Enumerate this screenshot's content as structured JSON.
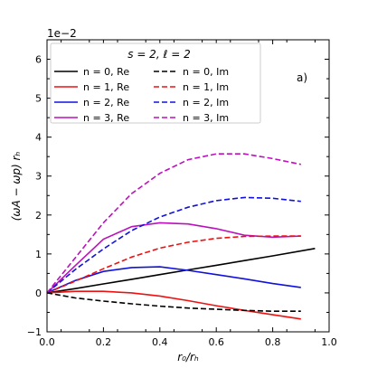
{
  "chart_data": {
    "type": "line",
    "title": "",
    "xlabel": "r₀/rₕ",
    "ylabel": "(ωA − ωp) rₕ",
    "scale_note": "1e−2",
    "annotation": "a)",
    "xlim": [
      0.0,
      1.0
    ],
    "ylim": [
      -1.0,
      6.5
    ],
    "xticks": [
      "0.0",
      "0.2",
      "0.4",
      "0.6",
      "0.8",
      "1.0"
    ],
    "yticks": [
      "−1",
      "0",
      "1",
      "2",
      "3",
      "4",
      "5",
      "6"
    ],
    "legend": {
      "title": "s = 2, ℓ = 2",
      "placement": "top-left"
    },
    "series": [
      {
        "name": "n = 0, Re",
        "color": "#000000",
        "dash": "solid",
        "x": [
          0.0,
          0.1,
          0.2,
          0.3,
          0.4,
          0.5,
          0.6,
          0.7,
          0.8,
          0.95
        ],
        "y": [
          0.0,
          0.11,
          0.23,
          0.35,
          0.47,
          0.59,
          0.71,
          0.83,
          0.95,
          1.14
        ]
      },
      {
        "name": "n = 1, Re",
        "color": "#ee1111",
        "dash": "solid",
        "x": [
          0.0,
          0.1,
          0.2,
          0.3,
          0.4,
          0.5,
          0.6,
          0.7,
          0.8,
          0.9
        ],
        "y": [
          0.0,
          0.04,
          0.04,
          0.0,
          -0.08,
          -0.2,
          -0.33,
          -0.45,
          -0.56,
          -0.67
        ]
      },
      {
        "name": "n = 2, Re",
        "color": "#1111dd",
        "dash": "solid",
        "x": [
          0.0,
          0.1,
          0.2,
          0.3,
          0.4,
          0.5,
          0.6,
          0.7,
          0.8,
          0.9
        ],
        "y": [
          0.0,
          0.32,
          0.55,
          0.65,
          0.67,
          0.58,
          0.47,
          0.36,
          0.24,
          0.14
        ]
      },
      {
        "name": "n = 3, Re",
        "color": "#bb11bb",
        "dash": "solid",
        "x": [
          0.0,
          0.1,
          0.2,
          0.3,
          0.4,
          0.5,
          0.6,
          0.7,
          0.8,
          0.9
        ],
        "y": [
          0.0,
          0.7,
          1.38,
          1.7,
          1.8,
          1.77,
          1.65,
          1.48,
          1.43,
          1.46
        ]
      },
      {
        "name": "n = 0, Im",
        "color": "#000000",
        "dash": "dashed",
        "x": [
          0.0,
          0.1,
          0.2,
          0.3,
          0.4,
          0.5,
          0.6,
          0.7,
          0.8,
          0.9
        ],
        "y": [
          0.0,
          -0.13,
          -0.21,
          -0.28,
          -0.34,
          -0.39,
          -0.42,
          -0.45,
          -0.47,
          -0.47
        ]
      },
      {
        "name": "n = 1, Im",
        "color": "#ee1111",
        "dash": "dashed",
        "x": [
          0.0,
          0.1,
          0.2,
          0.3,
          0.4,
          0.5,
          0.6,
          0.7,
          0.8,
          0.9
        ],
        "y": [
          0.0,
          0.3,
          0.62,
          0.92,
          1.15,
          1.3,
          1.4,
          1.45,
          1.46,
          1.46
        ]
      },
      {
        "name": "n = 2, Im",
        "color": "#1111dd",
        "dash": "dashed",
        "x": [
          0.0,
          0.1,
          0.2,
          0.3,
          0.4,
          0.5,
          0.6,
          0.7,
          0.8,
          0.9
        ],
        "y": [
          0.0,
          0.6,
          1.13,
          1.6,
          1.95,
          2.2,
          2.37,
          2.45,
          2.43,
          2.35
        ]
      },
      {
        "name": "n = 3, Im",
        "color": "#bb11bb",
        "dash": "dashed",
        "x": [
          0.0,
          0.1,
          0.2,
          0.3,
          0.4,
          0.5,
          0.6,
          0.7,
          0.8,
          0.9
        ],
        "y": [
          0.0,
          0.9,
          1.8,
          2.55,
          3.07,
          3.42,
          3.57,
          3.57,
          3.45,
          3.3
        ]
      }
    ]
  }
}
